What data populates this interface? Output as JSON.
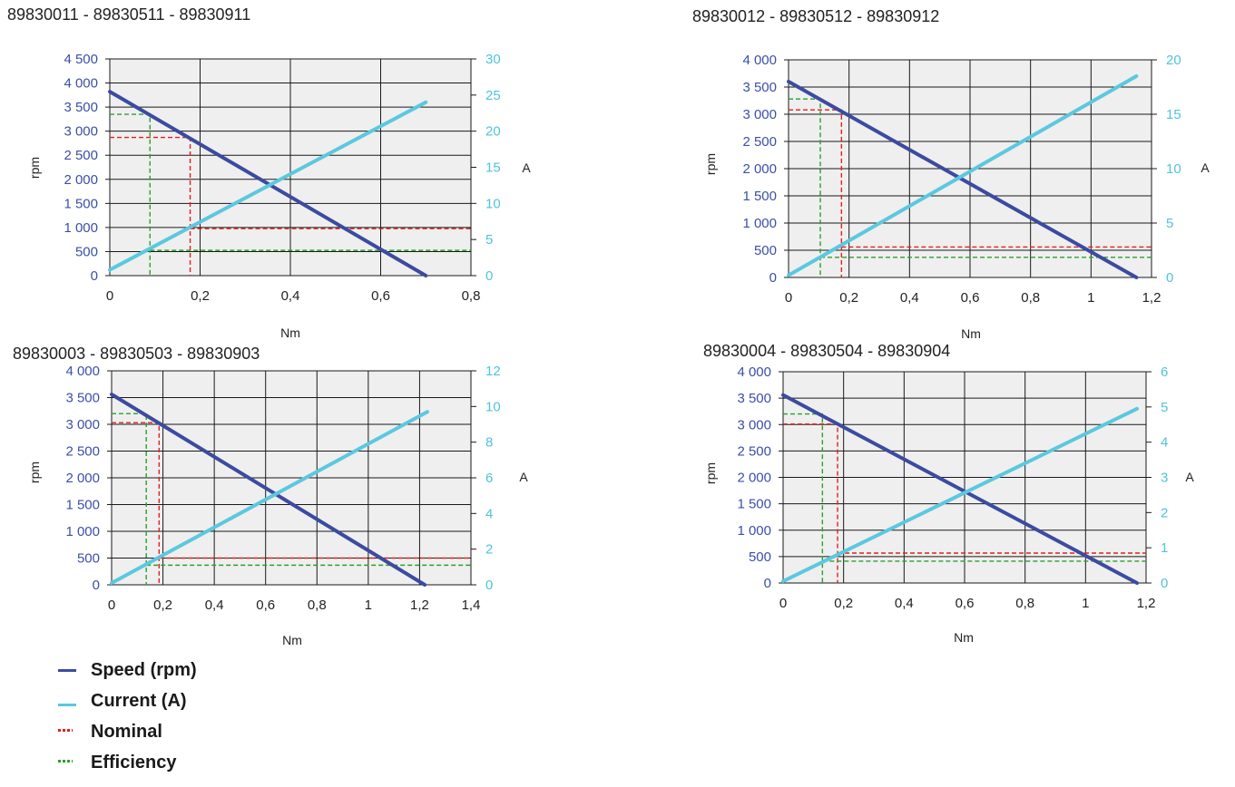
{
  "colors": {
    "speed": "#3c4ba0",
    "current": "#5bc8df",
    "nominal": "#e02020",
    "efficiency": "#2aa02a",
    "left_axis_text": "#3b4fa8",
    "right_axis_text": "#4fc3dc",
    "plot_bg": "#efefef",
    "grid": "#1a1a1a"
  },
  "legend": [
    {
      "label": "Speed (rpm)",
      "key": "speed",
      "style": "solid"
    },
    {
      "label": "Current (A)",
      "key": "current",
      "style": "solid"
    },
    {
      "label": "Nominal",
      "key": "nominal",
      "style": "dashed"
    },
    {
      "label": "Efficiency",
      "key": "efficiency",
      "style": "dashed"
    }
  ],
  "chart_data": [
    {
      "type": "line",
      "title": "89830011 - 89830511 - 89830911",
      "xlabel": "Nm",
      "ylabel": "rpm",
      "y2label": "A",
      "xlim": [
        0,
        0.8
      ],
      "ylim": [
        0,
        4500
      ],
      "y2lim": [
        0,
        30
      ],
      "xticks": [
        "0",
        "0,2",
        "0,4",
        "0,6",
        "0,8"
      ],
      "yticks": [
        "0",
        "500",
        "1 000",
        "1 500",
        "2 000",
        "2 500",
        "3 000",
        "3 500",
        "4 000",
        "4 500"
      ],
      "y2ticks": [
        "0",
        "5",
        "10",
        "15",
        "20",
        "25",
        "30"
      ],
      "grid": true,
      "series": [
        {
          "name": "Speed (rpm)",
          "axis": "left",
          "x": [
            0,
            0.7
          ],
          "y": [
            3820,
            0
          ]
        },
        {
          "name": "Current (A)",
          "axis": "right",
          "x": [
            0,
            0.7
          ],
          "y": [
            0.8,
            24
          ]
        }
      ],
      "nominal": {
        "torque": 0.178,
        "speed": 2870,
        "current": 6.5
      },
      "efficiency": {
        "torque": 0.089,
        "speed": 3350,
        "current": 3.5
      }
    },
    {
      "type": "line",
      "title": "89830012 - 89830512 - 89830912",
      "xlabel": "Nm",
      "ylabel": "rpm",
      "y2label": "A",
      "xlim": [
        0,
        1.2
      ],
      "ylim": [
        0,
        4000
      ],
      "y2lim": [
        0,
        20
      ],
      "xticks": [
        "0",
        "0,2",
        "0,4",
        "0,6",
        "0,8",
        "1",
        "1,2"
      ],
      "yticks": [
        "0",
        "500",
        "1 000",
        "1 500",
        "2 000",
        "2 500",
        "3 000",
        "3 500",
        "4 000"
      ],
      "y2ticks": [
        "0",
        "5",
        "10",
        "15",
        "20"
      ],
      "grid": true,
      "series": [
        {
          "name": "Speed (rpm)",
          "axis": "left",
          "x": [
            0,
            1.15
          ],
          "y": [
            3600,
            0
          ]
        },
        {
          "name": "Current (A)",
          "axis": "right",
          "x": [
            0,
            1.15
          ],
          "y": [
            0.2,
            18.5
          ]
        }
      ],
      "nominal": {
        "torque": 0.175,
        "speed": 3080,
        "current": 2.8
      },
      "efficiency": {
        "torque": 0.105,
        "speed": 3280,
        "current": 1.85
      }
    },
    {
      "type": "line",
      "title": "89830003 - 89830503 - 89830903",
      "xlabel": "Nm",
      "ylabel": "rpm",
      "y2label": "A",
      "xlim": [
        0,
        1.4
      ],
      "ylim": [
        0,
        4000
      ],
      "y2lim": [
        0,
        12
      ],
      "xticks": [
        "0",
        "0,2",
        "0,4",
        "0,6",
        "0,8",
        "1",
        "1,2",
        "1,4"
      ],
      "yticks": [
        "0",
        "500",
        "1 000",
        "1 500",
        "2 000",
        "2 500",
        "3 000",
        "3 500",
        "4 000"
      ],
      "y2ticks": [
        "0",
        "2",
        "4",
        "6",
        "8",
        "10",
        "12"
      ],
      "grid": true,
      "series": [
        {
          "name": "Speed (rpm)",
          "axis": "left",
          "x": [
            0,
            1.22
          ],
          "y": [
            3560,
            0
          ]
        },
        {
          "name": "Current (A)",
          "axis": "right",
          "x": [
            0,
            1.23
          ],
          "y": [
            0.1,
            9.7
          ]
        }
      ],
      "nominal": {
        "torque": 0.185,
        "speed": 3030,
        "current": 1.5
      },
      "efficiency": {
        "torque": 0.135,
        "speed": 3200,
        "current": 1.1
      }
    },
    {
      "type": "line",
      "title": "89830004 - 89830504 - 89830904",
      "xlabel": "Nm",
      "ylabel": "rpm",
      "y2label": "A",
      "xlim": [
        0,
        1.2
      ],
      "ylim": [
        0,
        4000
      ],
      "y2lim": [
        0,
        6
      ],
      "xticks": [
        "0",
        "0,2",
        "0,4",
        "0,6",
        "0,8",
        "1",
        "1,2"
      ],
      "yticks": [
        "0",
        "500",
        "1 000",
        "1 500",
        "2 000",
        "2 500",
        "3 000",
        "3 500",
        "4 000"
      ],
      "y2ticks": [
        "0",
        "1",
        "2",
        "3",
        "4",
        "5",
        "6"
      ],
      "grid": true,
      "series": [
        {
          "name": "Speed (rpm)",
          "axis": "left",
          "x": [
            0,
            1.17
          ],
          "y": [
            3560,
            0
          ]
        },
        {
          "name": "Current (A)",
          "axis": "right",
          "x": [
            0,
            1.17
          ],
          "y": [
            0.05,
            4.95
          ]
        }
      ],
      "nominal": {
        "torque": 0.18,
        "speed": 3010,
        "current": 0.85
      },
      "efficiency": {
        "torque": 0.13,
        "speed": 3200,
        "current": 0.62
      }
    }
  ]
}
